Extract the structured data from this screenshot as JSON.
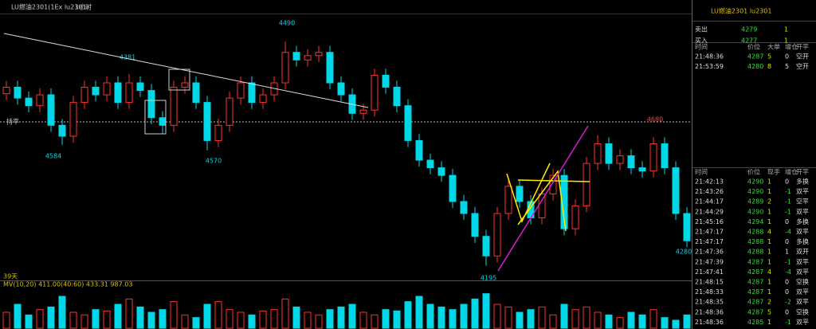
{
  "header": {
    "symbol": "LU燃油2301(1Ex lu2301)",
    "period": "1小时"
  },
  "chart_data": {
    "type": "candlestick",
    "ylim": [
      4180,
      4420
    ],
    "open": [
      4350,
      4356,
      4346,
      4339,
      4349,
      4321,
      4311,
      4342,
      4356,
      4349,
      4360,
      4342,
      4360,
      4353,
      4328,
      4321,
      4356,
      4360,
      4342,
      4307,
      4321,
      4346,
      4360,
      4342,
      4349,
      4360,
      4388,
      4381,
      4385,
      4388,
      4360,
      4349,
      4332,
      4335,
      4367,
      4356,
      4339,
      4307,
      4289,
      4282,
      4275,
      4251,
      4240,
      4219,
      4201,
      4240,
      4265,
      4251,
      4236,
      4258,
      4275,
      4226,
      4247,
      4286,
      4304,
      4286,
      4293,
      4282,
      4279,
      4304,
      4282,
      4240
    ],
    "high": [
      4362,
      4362,
      4352,
      4355,
      4355,
      4327,
      4348,
      4362,
      4362,
      4366,
      4366,
      4368,
      4366,
      4359,
      4334,
      4362,
      4366,
      4366,
      4348,
      4327,
      4352,
      4366,
      4366,
      4355,
      4366,
      4398,
      4394,
      4391,
      4394,
      4394,
      4366,
      4355,
      4341,
      4373,
      4373,
      4362,
      4345,
      4313,
      4295,
      4288,
      4281,
      4257,
      4246,
      4225,
      4246,
      4271,
      4271,
      4257,
      4264,
      4281,
      4281,
      4253,
      4292,
      4312,
      4310,
      4299,
      4299,
      4288,
      4310,
      4310,
      4288,
      4246
    ],
    "low": [
      4344,
      4340,
      4333,
      4333,
      4315,
      4303,
      4305,
      4336,
      4343,
      4343,
      4336,
      4336,
      4347,
      4322,
      4313,
      4315,
      4350,
      4336,
      4298,
      4301,
      4315,
      4340,
      4336,
      4336,
      4343,
      4354,
      4375,
      4375,
      4379,
      4354,
      4343,
      4326,
      4326,
      4329,
      4350,
      4333,
      4301,
      4283,
      4276,
      4269,
      4245,
      4234,
      4213,
      4192,
      4195,
      4234,
      4245,
      4230,
      4230,
      4252,
      4220,
      4220,
      4241,
      4280,
      4280,
      4280,
      4276,
      4273,
      4273,
      4276,
      4234,
      4209
    ],
    "close": [
      4356,
      4346,
      4339,
      4349,
      4321,
      4311,
      4342,
      4356,
      4349,
      4360,
      4342,
      4360,
      4353,
      4328,
      4321,
      4356,
      4360,
      4342,
      4307,
      4321,
      4346,
      4360,
      4342,
      4349,
      4360,
      4388,
      4381,
      4385,
      4388,
      4360,
      4349,
      4332,
      4335,
      4367,
      4356,
      4339,
      4307,
      4289,
      4282,
      4275,
      4251,
      4240,
      4219,
      4201,
      4240,
      4265,
      4251,
      4236,
      4258,
      4275,
      4226,
      4247,
      4286,
      4304,
      4286,
      4293,
      4282,
      4279,
      4304,
      4282,
      4240,
      4215
    ],
    "annotations": [
      4490,
      4381,
      4584,
      4570,
      4195,
      4680,
      4280
    ],
    "settle_label": "持平",
    "volume": {
      "ylim": [
        0,
        1500
      ],
      "values": [
        600,
        900,
        500,
        700,
        800,
        1200,
        600,
        500,
        700,
        650,
        900,
        1100,
        800,
        600,
        700,
        1000,
        500,
        400,
        900,
        1000,
        700,
        600,
        500,
        650,
        700,
        1100,
        800,
        600,
        500,
        700,
        800,
        900,
        600,
        500,
        700,
        650,
        1000,
        1200,
        900,
        800,
        700,
        900,
        1100,
        1300,
        900,
        800,
        600,
        700,
        800,
        500,
        900,
        700,
        800,
        600,
        500,
        400,
        600,
        500,
        700,
        400,
        300,
        500
      ]
    },
    "indicator": "MV(10,20)  411.00(40:60)  433.31  987.03",
    "day_label": "39天"
  },
  "quote": {
    "title": "LU燃油2301  lu2301",
    "rows": [
      [
        "卖出",
        4279,
        1
      ],
      [
        "买入",
        4277,
        1
      ]
    ]
  },
  "large_orders": {
    "columns": [
      "时间",
      "价位",
      "大单",
      "增仓",
      "开平"
    ],
    "rows": [
      [
        "21:48:36",
        4287,
        5,
        0,
        "空开"
      ],
      [
        "21:53:59",
        4280,
        8,
        5,
        "空开"
      ]
    ]
  },
  "ticks_table": {
    "columns": [
      "时间",
      "价位",
      "现手",
      "增仓",
      "开平"
    ],
    "rows": [
      [
        "21:42:13",
        4290,
        1,
        0,
        "多换"
      ],
      [
        "21:43:26",
        4290,
        1,
        -1,
        "双平"
      ],
      [
        "21:44:17",
        4289,
        2,
        -1,
        "空平"
      ],
      [
        "21:44:29",
        4290,
        1,
        -1,
        "双平"
      ],
      [
        "21:45:16",
        4294,
        1,
        0,
        "多换"
      ],
      [
        "21:47:17",
        4288,
        4,
        -4,
        "双平"
      ],
      [
        "21:47:17",
        4288,
        1,
        0,
        "多换"
      ],
      [
        "21:47:36",
        4288,
        1,
        1,
        "双开"
      ],
      [
        "21:47:39",
        4287,
        1,
        -1,
        "双平"
      ],
      [
        "21:47:41",
        4287,
        4,
        -4,
        "双平"
      ],
      [
        "21:48:15",
        4287,
        1,
        0,
        "空换"
      ],
      [
        "21:48:33",
        4287,
        1,
        0,
        "双平"
      ],
      [
        "21:48:35",
        4287,
        2,
        -2,
        "双平"
      ],
      [
        "21:48:36",
        4287,
        5,
        0,
        "空换"
      ],
      [
        "21:48:36",
        4285,
        1,
        -1,
        "双平"
      ]
    ]
  }
}
